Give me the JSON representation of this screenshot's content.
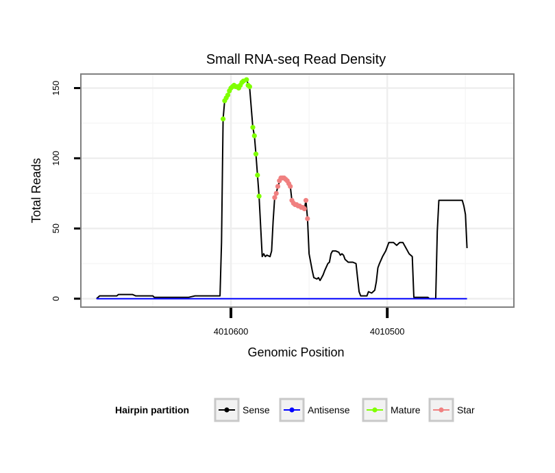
{
  "chart_data": {
    "type": "line",
    "title": "Small RNA-seq Read Density",
    "xlabel": "Genomic Position",
    "ylabel": "Total Reads",
    "x_reversed": true,
    "xlim": [
      4010696,
      4010419
    ],
    "ylim": [
      -6,
      160
    ],
    "x_ticks": [
      4010600,
      4010500
    ],
    "x_tick_labels": [
      "4010600",
      "4010500"
    ],
    "y_ticks": [
      0,
      50,
      100,
      150
    ],
    "y_tick_labels": [
      "0",
      "50",
      "100",
      "150"
    ],
    "grid": true,
    "legend": {
      "title": "Hairpin partition",
      "position": "bottom",
      "entries": [
        {
          "label": "Sense",
          "color": "#000000"
        },
        {
          "label": "Antisense",
          "color": "#0000ff"
        },
        {
          "label": "Mature",
          "color": "#7fff00"
        },
        {
          "label": "Star",
          "color": "#f08080"
        }
      ]
    },
    "series": [
      {
        "name": "Sense",
        "color": "#000000",
        "markers": false,
        "points": [
          [
            4010686,
            0
          ],
          [
            4010684,
            2
          ],
          [
            4010673,
            2
          ],
          [
            4010672,
            3
          ],
          [
            4010663,
            3
          ],
          [
            4010661,
            2
          ],
          [
            4010650,
            2
          ],
          [
            4010649,
            1
          ],
          [
            4010627,
            1
          ],
          [
            4010623,
            2
          ],
          [
            4010607,
            2
          ],
          [
            4010606,
            40
          ],
          [
            4010605,
            128
          ],
          [
            4010604,
            141
          ],
          [
            4010602,
            145
          ],
          [
            4010600,
            150
          ],
          [
            4010598,
            152
          ],
          [
            4010596,
            150
          ],
          [
            4010594,
            151
          ],
          [
            4010592,
            155
          ],
          [
            4010590,
            156
          ],
          [
            4010588,
            150
          ],
          [
            4010586,
            122
          ],
          [
            4010585,
            116
          ],
          [
            4010584,
            103
          ],
          [
            4010583,
            88
          ],
          [
            4010582,
            73
          ],
          [
            4010580,
            30
          ],
          [
            4010579,
            32
          ],
          [
            4010578,
            30
          ],
          [
            4010577,
            31
          ],
          [
            4010575,
            30
          ],
          [
            4010574,
            34
          ],
          [
            4010573,
            55
          ],
          [
            4010572,
            72
          ],
          [
            4010571,
            75
          ],
          [
            4010570,
            80
          ],
          [
            4010568,
            86
          ],
          [
            4010566,
            86
          ],
          [
            4010564,
            84
          ],
          [
            4010562,
            80
          ],
          [
            4010561,
            70
          ],
          [
            4010560,
            68
          ],
          [
            4010558,
            67
          ],
          [
            4010556,
            66
          ],
          [
            4010554,
            65
          ],
          [
            4010553,
            64
          ],
          [
            4010552,
            70
          ],
          [
            4010551,
            57
          ],
          [
            4010550,
            32
          ],
          [
            4010548,
            20
          ],
          [
            4010547,
            15
          ],
          [
            4010545,
            14
          ],
          [
            4010544,
            15
          ],
          [
            4010543,
            13
          ],
          [
            4010542,
            15
          ],
          [
            4010541,
            17
          ],
          [
            4010540,
            20
          ],
          [
            4010538,
            25
          ],
          [
            4010537,
            26
          ],
          [
            4010536,
            32
          ],
          [
            4010535,
            34
          ],
          [
            4010533,
            34
          ],
          [
            4010531,
            33
          ],
          [
            4010530,
            31
          ],
          [
            4010529,
            32
          ],
          [
            4010528,
            31
          ],
          [
            4010527,
            28
          ],
          [
            4010525,
            26
          ],
          [
            4010522,
            26
          ],
          [
            4010520,
            25
          ],
          [
            4010519,
            15
          ],
          [
            4010518,
            5
          ],
          [
            4010517,
            2
          ],
          [
            4010515,
            2
          ],
          [
            4010513,
            2
          ],
          [
            4010512,
            5
          ],
          [
            4010510,
            4
          ],
          [
            4010508,
            6
          ],
          [
            4010507,
            12
          ],
          [
            4010506,
            22
          ],
          [
            4010505,
            25
          ],
          [
            4010503,
            30
          ],
          [
            4010501,
            34
          ],
          [
            4010499,
            40
          ],
          [
            4010496,
            40
          ],
          [
            4010494,
            38
          ],
          [
            4010492,
            40
          ],
          [
            4010490,
            40
          ],
          [
            4010488,
            36
          ],
          [
            4010486,
            32
          ],
          [
            4010484,
            30
          ],
          [
            4010483,
            1
          ],
          [
            4010479,
            1
          ],
          [
            4010474,
            1
          ],
          [
            4010473,
            0
          ],
          [
            4010469,
            0
          ],
          [
            4010468,
            48
          ],
          [
            4010467,
            70
          ],
          [
            4010465,
            70
          ],
          [
            4010460,
            70
          ],
          [
            4010455,
            70
          ],
          [
            4010452,
            70
          ],
          [
            4010451,
            66
          ],
          [
            4010450,
            60
          ],
          [
            4010449,
            36
          ]
        ]
      },
      {
        "name": "Antisense",
        "color": "#0000ff",
        "markers": false,
        "points": [
          [
            4010686,
            0
          ],
          [
            4010449,
            0
          ]
        ]
      },
      {
        "name": "Mature",
        "color": "#7fff00",
        "markers": true,
        "points": [
          [
            4010605,
            128
          ],
          [
            4010604,
            141
          ],
          [
            4010603,
            143
          ],
          [
            4010602,
            145
          ],
          [
            4010601,
            148
          ],
          [
            4010600,
            150
          ],
          [
            4010599,
            151
          ],
          [
            4010598,
            152
          ],
          [
            4010597,
            151
          ],
          [
            4010596,
            151
          ],
          [
            4010595,
            150
          ],
          [
            4010594,
            152
          ],
          [
            4010593,
            154
          ],
          [
            4010592,
            155
          ],
          [
            4010590,
            156
          ],
          [
            4010589,
            152
          ],
          [
            4010588,
            151
          ],
          [
            4010586,
            122
          ],
          [
            4010585,
            116
          ],
          [
            4010584,
            103
          ],
          [
            4010583,
            88
          ],
          [
            4010582,
            73
          ]
        ]
      },
      {
        "name": "Star",
        "color": "#f08080",
        "markers": true,
        "points": [
          [
            4010572,
            72
          ],
          [
            4010571,
            75
          ],
          [
            4010570,
            80
          ],
          [
            4010569,
            84
          ],
          [
            4010568,
            86
          ],
          [
            4010567,
            86
          ],
          [
            4010566,
            86
          ],
          [
            4010565,
            85
          ],
          [
            4010564,
            84
          ],
          [
            4010563,
            82
          ],
          [
            4010562,
            80
          ],
          [
            4010561,
            70
          ],
          [
            4010560,
            68
          ],
          [
            4010559,
            67
          ],
          [
            4010558,
            67
          ],
          [
            4010557,
            66
          ],
          [
            4010556,
            66
          ],
          [
            4010555,
            65
          ],
          [
            4010554,
            65
          ],
          [
            4010553,
            64
          ],
          [
            4010552,
            70
          ],
          [
            4010551,
            57
          ]
        ]
      }
    ]
  }
}
